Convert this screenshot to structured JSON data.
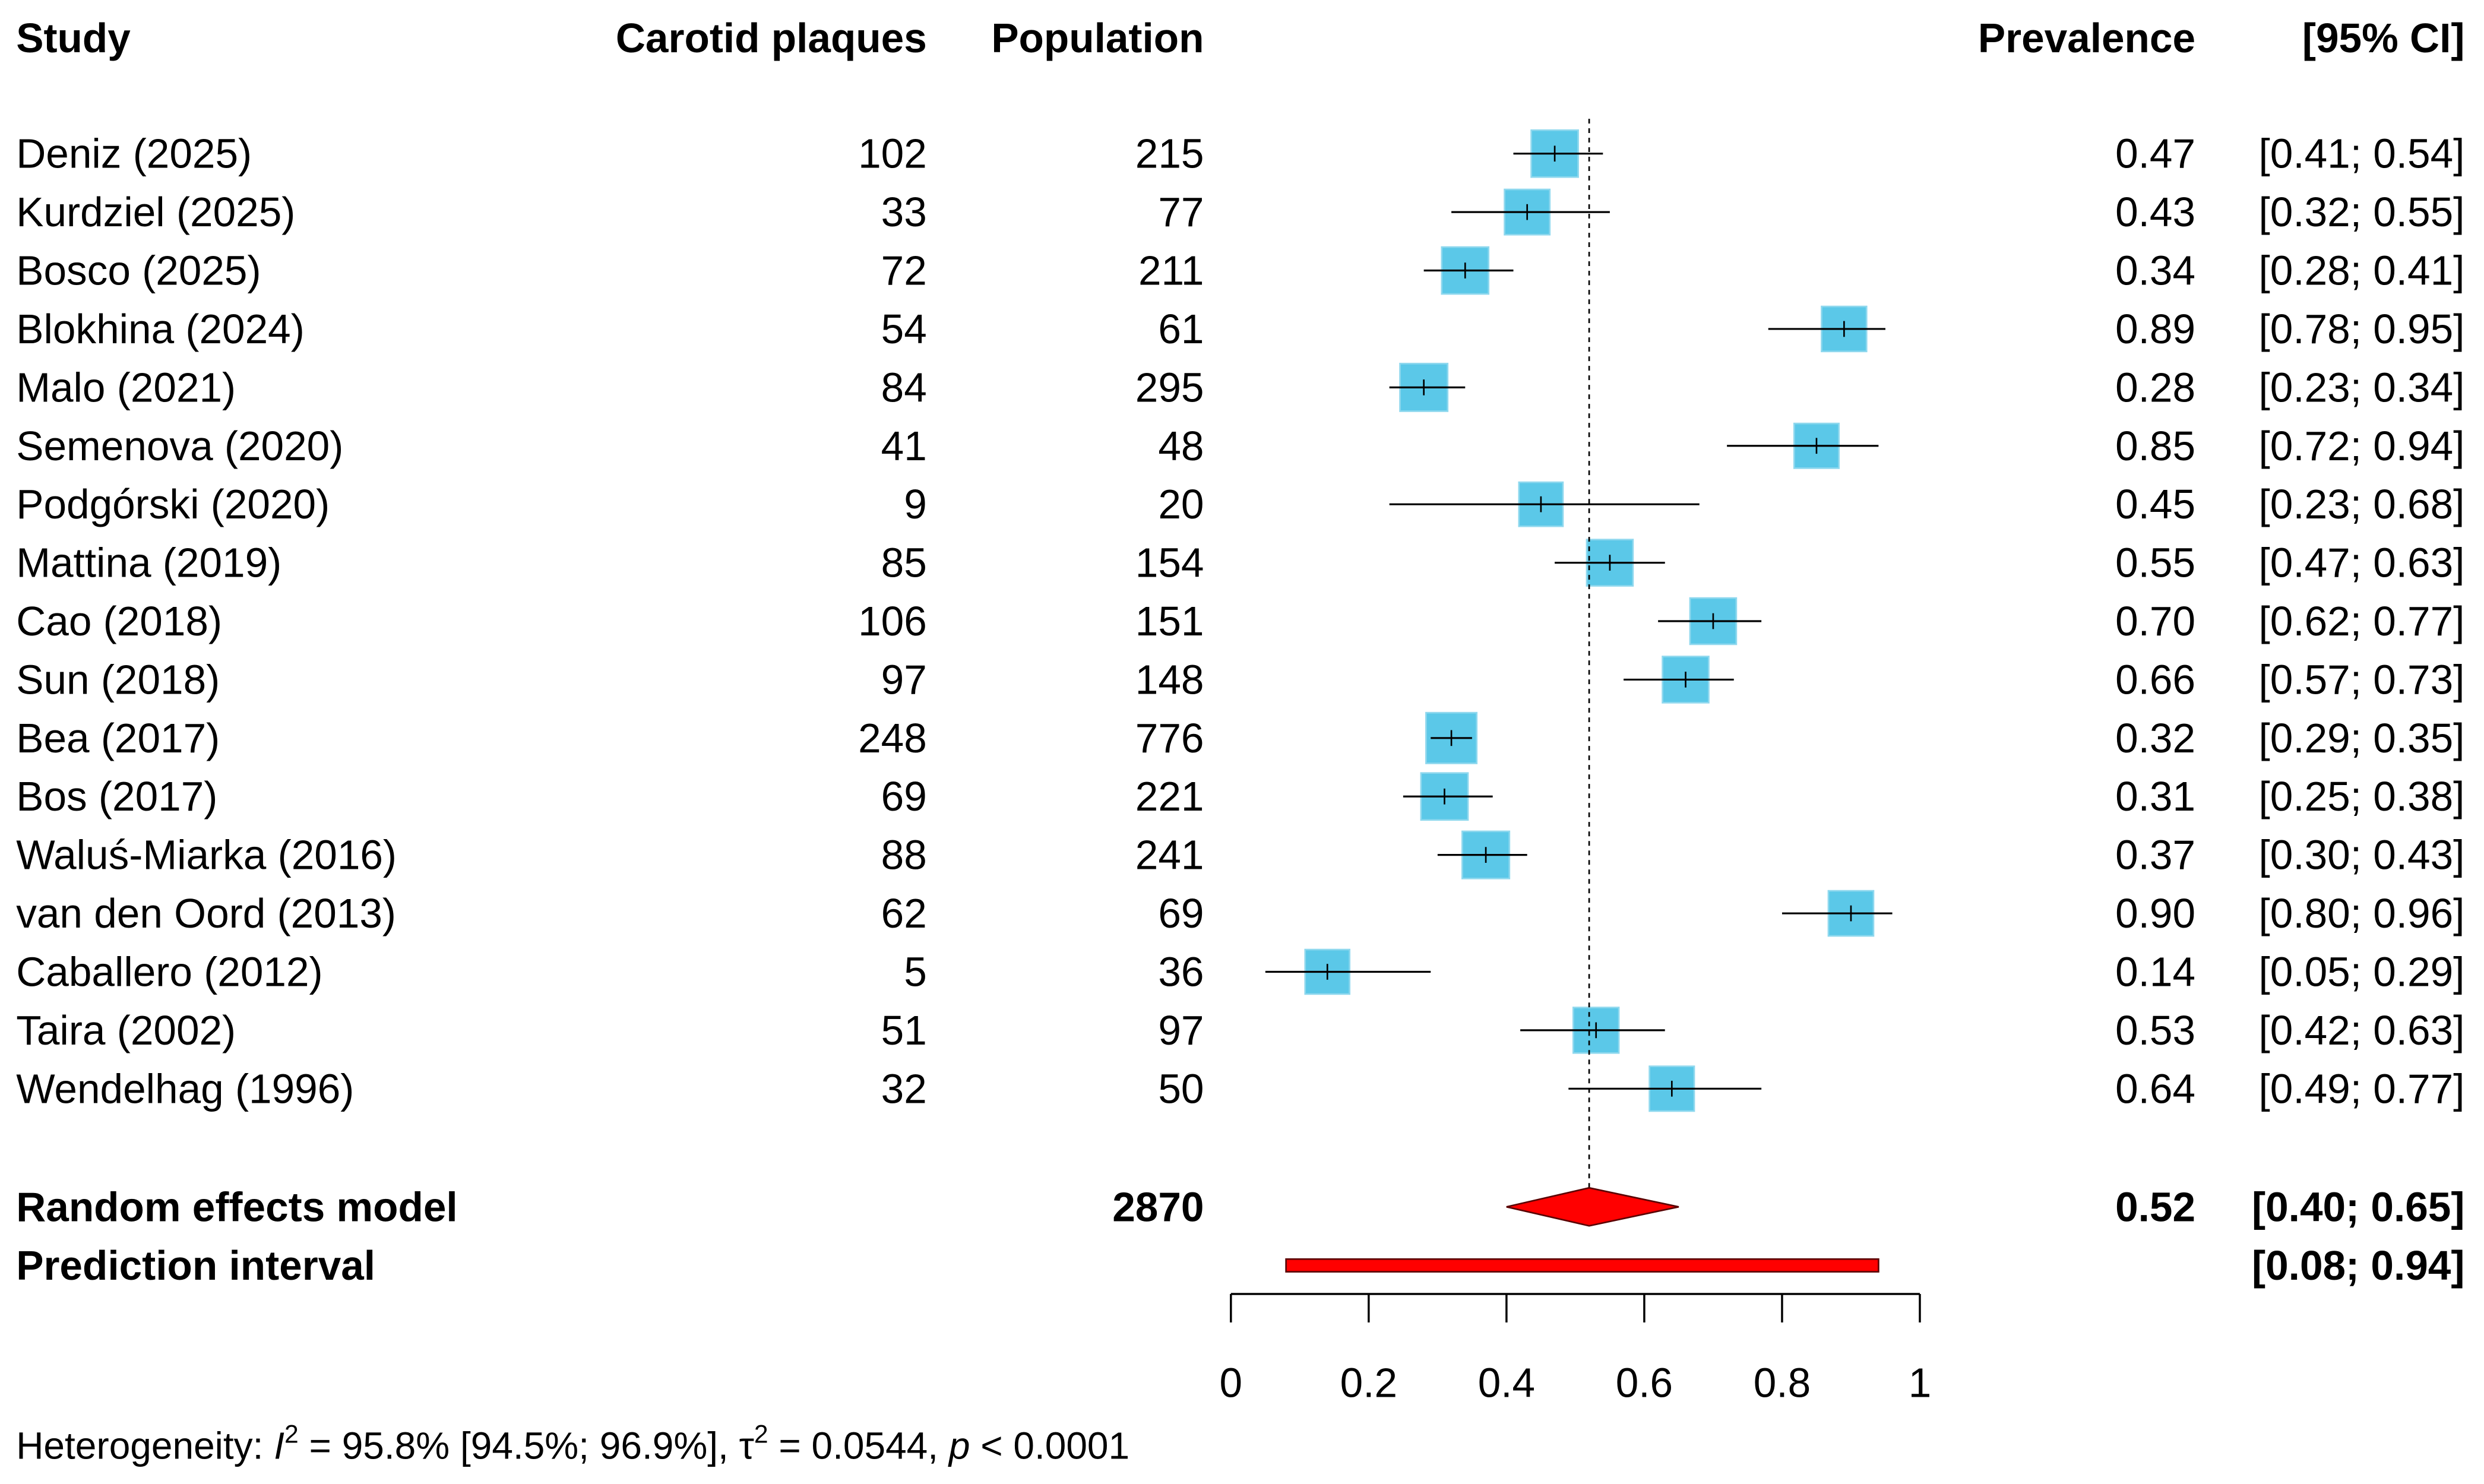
{
  "chart_data": {
    "type": "forest",
    "headers": {
      "study": "Study",
      "events": "Carotid plaques",
      "total": "Population",
      "estimate": "Prevalence",
      "ci": "[95% CI]"
    },
    "studies": [
      {
        "name": "Deniz (2025)",
        "events": "102",
        "total": "215",
        "est": 0.47,
        "lo": 0.41,
        "hi": 0.54,
        "est_label": "0.47",
        "ci_label": "[0.41; 0.54]"
      },
      {
        "name": "Kurdziel (2025)",
        "events": "33",
        "total": "77",
        "est": 0.43,
        "lo": 0.32,
        "hi": 0.55,
        "est_label": "0.43",
        "ci_label": "[0.32; 0.55]"
      },
      {
        "name": "Bosco (2025)",
        "events": "72",
        "total": "211",
        "est": 0.34,
        "lo": 0.28,
        "hi": 0.41,
        "est_label": "0.34",
        "ci_label": "[0.28; 0.41]"
      },
      {
        "name": "Blokhina (2024)",
        "events": "54",
        "total": "61",
        "est": 0.89,
        "lo": 0.78,
        "hi": 0.95,
        "est_label": "0.89",
        "ci_label": "[0.78; 0.95]"
      },
      {
        "name": "Malo (2021)",
        "events": "84",
        "total": "295",
        "est": 0.28,
        "lo": 0.23,
        "hi": 0.34,
        "est_label": "0.28",
        "ci_label": "[0.23; 0.34]"
      },
      {
        "name": "Semenova (2020)",
        "events": "41",
        "total": "48",
        "est": 0.85,
        "lo": 0.72,
        "hi": 0.94,
        "est_label": "0.85",
        "ci_label": "[0.72; 0.94]"
      },
      {
        "name": "Podgórski (2020)",
        "events": "9",
        "total": "20",
        "est": 0.45,
        "lo": 0.23,
        "hi": 0.68,
        "est_label": "0.45",
        "ci_label": "[0.23; 0.68]"
      },
      {
        "name": "Mattina (2019)",
        "events": "85",
        "total": "154",
        "est": 0.55,
        "lo": 0.47,
        "hi": 0.63,
        "est_label": "0.55",
        "ci_label": "[0.47; 0.63]"
      },
      {
        "name": "Cao (2018)",
        "events": "106",
        "total": "151",
        "est": 0.7,
        "lo": 0.62,
        "hi": 0.77,
        "est_label": "0.70",
        "ci_label": "[0.62; 0.77]"
      },
      {
        "name": "Sun (2018)",
        "events": "97",
        "total": "148",
        "est": 0.66,
        "lo": 0.57,
        "hi": 0.73,
        "est_label": "0.66",
        "ci_label": "[0.57; 0.73]"
      },
      {
        "name": "Bea (2017)",
        "events": "248",
        "total": "776",
        "est": 0.32,
        "lo": 0.29,
        "hi": 0.35,
        "est_label": "0.32",
        "ci_label": "[0.29; 0.35]"
      },
      {
        "name": "Bos (2017)",
        "events": "69",
        "total": "221",
        "est": 0.31,
        "lo": 0.25,
        "hi": 0.38,
        "est_label": "0.31",
        "ci_label": "[0.25; 0.38]"
      },
      {
        "name": "Waluś-Miarka (2016)",
        "events": "88",
        "total": "241",
        "est": 0.37,
        "lo": 0.3,
        "hi": 0.43,
        "est_label": "0.37",
        "ci_label": "[0.30; 0.43]"
      },
      {
        "name": "van den Oord (2013)",
        "events": "62",
        "total": "69",
        "est": 0.9,
        "lo": 0.8,
        "hi": 0.96,
        "est_label": "0.90",
        "ci_label": "[0.80; 0.96]"
      },
      {
        "name": "Caballero (2012)",
        "events": "5",
        "total": "36",
        "est": 0.14,
        "lo": 0.05,
        "hi": 0.29,
        "est_label": "0.14",
        "ci_label": "[0.05; 0.29]"
      },
      {
        "name": "Taira (2002)",
        "events": "51",
        "total": "97",
        "est": 0.53,
        "lo": 0.42,
        "hi": 0.63,
        "est_label": "0.53",
        "ci_label": "[0.42; 0.63]"
      },
      {
        "name": "Wendelhag (1996)",
        "events": "32",
        "total": "50",
        "est": 0.64,
        "lo": 0.49,
        "hi": 0.77,
        "est_label": "0.64",
        "ci_label": "[0.49; 0.77]"
      }
    ],
    "random_effects": {
      "label": "Random effects model",
      "total": "2870",
      "est": 0.52,
      "lo": 0.4,
      "hi": 0.65,
      "est_label": "0.52",
      "ci_label": "[0.40; 0.65]"
    },
    "prediction_interval": {
      "label": "Prediction interval",
      "lo": 0.08,
      "hi": 0.94,
      "ci_label": "[0.08; 0.94]"
    },
    "xlim": [
      0,
      1
    ],
    "xticks": [
      0,
      0.2,
      0.4,
      0.6,
      0.8,
      1
    ],
    "xtick_labels": [
      "0",
      "0.2",
      "0.4",
      "0.6",
      "0.8",
      "1"
    ],
    "heterogeneity": {
      "prefix": "Heterogeneity: ",
      "i2_symbol": "I",
      "i2_text": " = 95.8% [94.5%; 96.9%], ",
      "tau_symbol": "τ",
      "tau_text": " = 0.0544, ",
      "p_symbol": "p",
      "p_text": " < 0.0001",
      "sup": "2"
    },
    "colors": {
      "square": "#5BC8E8",
      "square_border": "#8FD8EE",
      "diamond": "#FF0000",
      "diamond_border": "#5A0000"
    }
  }
}
